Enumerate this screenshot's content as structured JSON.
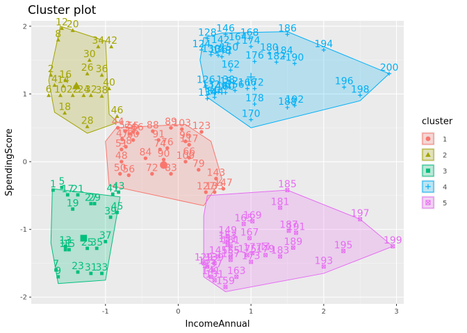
{
  "chart_data": {
    "type": "scatter",
    "title": "Cluster plot",
    "xlabel": "IncomeAnnual",
    "ylabel": "SpendingScore",
    "xlim": [
      -2.02,
      3.1
    ],
    "ylim": [
      -2.1,
      2.08
    ],
    "xticks": [
      -1,
      0,
      1,
      2,
      3
    ],
    "yticks": [
      -2,
      -1,
      0,
      1,
      2
    ],
    "grid": true,
    "legend": {
      "title": "cluster",
      "position": "right",
      "entries": [
        "1",
        "2",
        "3",
        "4",
        "5"
      ]
    },
    "series": [
      {
        "name": "1",
        "color": "#F8766D",
        "shape": "circle",
        "hull": [
          [
            -0.85,
            0.5
          ],
          [
            0.1,
            0.55
          ],
          [
            0.45,
            0.3
          ],
          [
            0.6,
            -0.25
          ],
          [
            0.35,
            -0.65
          ],
          [
            -0.95,
            -0.35
          ],
          [
            -1.0,
            0.3
          ]
        ],
        "centroid": [
          -0.2,
          -0.05
        ],
        "points": [
          {
            "id": "44",
            "x": -0.83,
            "y": 0.5
          },
          {
            "id": "52",
            "x": -0.73,
            "y": 0.45
          },
          {
            "id": "54",
            "x": -0.66,
            "y": 0.41
          },
          {
            "id": "55",
            "x": -0.62,
            "y": 0.44
          },
          {
            "id": "66",
            "x": -0.56,
            "y": 0.42
          },
          {
            "id": "47",
            "x": -0.77,
            "y": 0.33
          },
          {
            "id": "60",
            "x": -0.62,
            "y": 0.32
          },
          {
            "id": "58",
            "x": -0.72,
            "y": 0.22
          },
          {
            "id": "51",
            "x": -0.78,
            "y": 0.18
          },
          {
            "id": "88",
            "x": -0.35,
            "y": 0.45
          },
          {
            "id": "89",
            "x": -0.1,
            "y": 0.5
          },
          {
            "id": "103",
            "x": 0.05,
            "y": 0.48
          },
          {
            "id": "123",
            "x": 0.32,
            "y": 0.44
          },
          {
            "id": "91",
            "x": -0.27,
            "y": 0.32
          },
          {
            "id": "74",
            "x": -0.25,
            "y": 0.18
          },
          {
            "id": "76",
            "x": -0.15,
            "y": 0.2
          },
          {
            "id": "96",
            "x": 0.1,
            "y": 0.3
          },
          {
            "id": "117",
            "x": 0.15,
            "y": 0.25
          },
          {
            "id": "48",
            "x": -0.78,
            "y": 0.0
          },
          {
            "id": "84",
            "x": -0.45,
            "y": 0.05
          },
          {
            "id": "90",
            "x": -0.2,
            "y": 0.03
          },
          {
            "id": "109",
            "x": 0.1,
            "y": 0.0
          },
          {
            "id": "66b",
            "x": 0.15,
            "y": 0.06
          },
          {
            "id": "50",
            "x": -0.8,
            "y": -0.18
          },
          {
            "id": "56",
            "x": -0.68,
            "y": -0.2
          },
          {
            "id": "72",
            "x": -0.36,
            "y": -0.18
          },
          {
            "id": "83",
            "x": -0.1,
            "y": -0.18
          },
          {
            "id": "79",
            "x": 0.28,
            "y": -0.12
          },
          {
            "id": "143",
            "x": 0.52,
            "y": -0.25
          },
          {
            "id": "127",
            "x": 0.38,
            "y": -0.45
          },
          {
            "id": "133",
            "x": 0.5,
            "y": -0.45
          },
          {
            "id": "147",
            "x": 0.62,
            "y": -0.4
          }
        ]
      },
      {
        "name": "2",
        "color": "#A3A500",
        "shape": "triangle",
        "hull": [
          [
            -1.62,
            2.0
          ],
          [
            -1.0,
            1.78
          ],
          [
            -0.95,
            0.7
          ],
          [
            -0.83,
            0.58
          ],
          [
            -1.25,
            0.42
          ],
          [
            -1.7,
            0.73
          ],
          [
            -1.78,
            1.2
          ]
        ],
        "centroid": [
          -1.4,
          1.12
        ],
        "points": [
          {
            "id": "12",
            "x": -1.6,
            "y": 1.97
          },
          {
            "id": "20",
            "x": -1.45,
            "y": 1.94
          },
          {
            "id": "8",
            "x": -1.65,
            "y": 1.8
          },
          {
            "id": "34",
            "x": -1.1,
            "y": 1.7
          },
          {
            "id": "42",
            "x": -0.92,
            "y": 1.7
          },
          {
            "id": "30",
            "x": -1.22,
            "y": 1.5
          },
          {
            "id": "26",
            "x": -1.25,
            "y": 1.3
          },
          {
            "id": "36",
            "x": -1.05,
            "y": 1.28
          },
          {
            "id": "2",
            "x": -1.75,
            "y": 1.28
          },
          {
            "id": "16",
            "x": -1.55,
            "y": 1.2
          },
          {
            "id": "4",
            "x": -1.7,
            "y": 1.13
          },
          {
            "id": "14",
            "x": -1.58,
            "y": 1.12
          },
          {
            "id": "40",
            "x": -0.95,
            "y": 1.08
          },
          {
            "id": "10",
            "x": -1.62,
            "y": 0.98
          },
          {
            "id": "22",
            "x": -1.45,
            "y": 0.98
          },
          {
            "id": "24",
            "x": -1.3,
            "y": 0.98
          },
          {
            "id": "32",
            "x": -1.2,
            "y": 0.98
          },
          {
            "id": "38",
            "x": -1.05,
            "y": 0.97
          },
          {
            "id": "6",
            "x": -1.78,
            "y": 0.98
          },
          {
            "id": "18",
            "x": -1.56,
            "y": 0.72
          },
          {
            "id": "46",
            "x": -0.84,
            "y": 0.67
          },
          {
            "id": "28",
            "x": -1.25,
            "y": 0.52
          }
        ]
      },
      {
        "name": "3",
        "color": "#00BF7D",
        "shape": "square",
        "hull": [
          [
            -1.73,
            -0.4
          ],
          [
            -0.8,
            -0.52
          ],
          [
            -1.0,
            -1.75
          ],
          [
            -1.65,
            -1.8
          ],
          [
            -1.75,
            -1.2
          ]
        ],
        "centroid": [
          -1.3,
          -1.13
        ],
        "points": [
          {
            "id": "1",
            "x": -1.72,
            "y": -0.42
          },
          {
            "id": "5",
            "x": -1.6,
            "y": -0.38
          },
          {
            "id": "17",
            "x": -1.52,
            "y": -0.49
          },
          {
            "id": "21",
            "x": -1.38,
            "y": -0.49
          },
          {
            "id": "27",
            "x": -1.2,
            "y": -0.62
          },
          {
            "id": "29",
            "x": -1.15,
            "y": -0.62
          },
          {
            "id": "19",
            "x": -1.45,
            "y": -0.7
          },
          {
            "id": "41",
            "x": -0.9,
            "y": -0.48
          },
          {
            "id": "43",
            "x": -0.82,
            "y": -0.45
          },
          {
            "id": "45",
            "x": -0.84,
            "y": -0.75
          },
          {
            "id": "39",
            "x": -0.93,
            "y": -0.82
          },
          {
            "id": "13",
            "x": -1.55,
            "y": -1.25
          },
          {
            "id": "11",
            "x": -1.55,
            "y": -1.3
          },
          {
            "id": "15",
            "x": -1.5,
            "y": -1.3
          },
          {
            "id": "25",
            "x": -1.25,
            "y": -1.28
          },
          {
            "id": "35",
            "x": -1.12,
            "y": -1.28
          },
          {
            "id": "37",
            "x": -1.0,
            "y": -1.18
          },
          {
            "id": "7",
            "x": -1.68,
            "y": -1.6
          },
          {
            "id": "9",
            "x": -1.65,
            "y": -1.7
          },
          {
            "id": "23",
            "x": -1.38,
            "y": -1.63
          },
          {
            "id": "31",
            "x": -1.2,
            "y": -1.65
          },
          {
            "id": "33",
            "x": -1.05,
            "y": -1.65
          }
        ]
      },
      {
        "name": "4",
        "color": "#00B0F6",
        "shape": "cross",
        "hull": [
          [
            0.35,
            1.83
          ],
          [
            0.6,
            1.9
          ],
          [
            1.5,
            1.92
          ],
          [
            2.9,
            1.3
          ],
          [
            2.5,
            0.9
          ],
          [
            1.0,
            0.5
          ],
          [
            0.4,
            0.95
          ],
          [
            0.3,
            1.5
          ]
        ],
        "centroid": [
          1.0,
          1.25
        ],
        "points": [
          {
            "id": "128",
            "x": 0.4,
            "y": 1.82
          },
          {
            "id": "146",
            "x": 0.65,
            "y": 1.88
          },
          {
            "id": "168",
            "x": 0.98,
            "y": 1.82
          },
          {
            "id": "186",
            "x": 1.5,
            "y": 1.88
          },
          {
            "id": "124",
            "x": 0.32,
            "y": 1.65
          },
          {
            "id": "142",
            "x": 0.58,
            "y": 1.71
          },
          {
            "id": "164",
            "x": 0.82,
            "y": 1.75
          },
          {
            "id": "174",
            "x": 1.0,
            "y": 1.7
          },
          {
            "id": "194",
            "x": 2.0,
            "y": 1.65
          },
          {
            "id": "130",
            "x": 0.45,
            "y": 1.58
          },
          {
            "id": "136",
            "x": 0.55,
            "y": 1.57
          },
          {
            "id": "148",
            "x": 0.6,
            "y": 1.55
          },
          {
            "id": "150",
            "x": 0.7,
            "y": 1.6
          },
          {
            "id": "180",
            "x": 1.25,
            "y": 1.6
          },
          {
            "id": "184",
            "x": 1.45,
            "y": 1.55
          },
          {
            "id": "176",
            "x": 1.05,
            "y": 1.48
          },
          {
            "id": "182",
            "x": 1.35,
            "y": 1.47
          },
          {
            "id": "190",
            "x": 1.6,
            "y": 1.45
          },
          {
            "id": "162",
            "x": 0.72,
            "y": 1.35
          },
          {
            "id": "200",
            "x": 2.9,
            "y": 1.3
          },
          {
            "id": "196",
            "x": 2.28,
            "y": 1.1
          },
          {
            "id": "126",
            "x": 0.38,
            "y": 1.12
          },
          {
            "id": "138",
            "x": 0.65,
            "y": 1.12
          },
          {
            "id": "132",
            "x": 0.45,
            "y": 1.05
          },
          {
            "id": "140",
            "x": 0.55,
            "y": 1.03
          },
          {
            "id": "152",
            "x": 0.7,
            "y": 1.1
          },
          {
            "id": "156",
            "x": 0.78,
            "y": 1.05
          },
          {
            "id": "160",
            "x": 0.65,
            "y": 1.02
          },
          {
            "id": "166",
            "x": 0.95,
            "y": 1.08
          },
          {
            "id": "172",
            "x": 1.05,
            "y": 1.08
          },
          {
            "id": "198",
            "x": 2.5,
            "y": 0.98
          },
          {
            "id": "134",
            "x": 0.4,
            "y": 0.93
          },
          {
            "id": "144",
            "x": 0.5,
            "y": 0.95
          },
          {
            "id": "178",
            "x": 1.05,
            "y": 0.85
          },
          {
            "id": "188",
            "x": 1.5,
            "y": 0.8
          },
          {
            "id": "192",
            "x": 1.6,
            "y": 0.83
          },
          {
            "id": "170",
            "x": 1.0,
            "y": 0.62
          }
        ]
      },
      {
        "name": "5",
        "color": "#E76BF3",
        "shape": "square-cross",
        "hull": [
          [
            0.4,
            -0.5
          ],
          [
            1.5,
            -0.42
          ],
          [
            2.5,
            -0.85
          ],
          [
            2.95,
            -1.25
          ],
          [
            2.0,
            -1.65
          ],
          [
            0.65,
            -1.92
          ],
          [
            0.35,
            -1.7
          ],
          [
            0.35,
            -0.8
          ]
        ],
        "centroid": [
          1.2,
          -1.25
        ],
        "points": [
          {
            "id": "185",
            "x": 1.5,
            "y": -0.42
          },
          {
            "id": "181",
            "x": 1.4,
            "y": -0.68
          },
          {
            "id": "197",
            "x": 2.5,
            "y": -0.85
          },
          {
            "id": "165",
            "x": 0.9,
            "y": -0.92
          },
          {
            "id": "169",
            "x": 1.02,
            "y": -0.88
          },
          {
            "id": "187",
            "x": 1.52,
            "y": -1.02
          },
          {
            "id": "191",
            "x": 1.62,
            "y": -1.05
          },
          {
            "id": "149",
            "x": 0.68,
            "y": -1.1
          },
          {
            "id": "167",
            "x": 0.98,
            "y": -1.13
          },
          {
            "id": "199",
            "x": 2.95,
            "y": -1.25
          },
          {
            "id": "153",
            "x": 0.68,
            "y": -1.18
          },
          {
            "id": "151",
            "x": 0.68,
            "y": -1.23
          },
          {
            "id": "161",
            "x": 0.72,
            "y": -1.25
          },
          {
            "id": "189",
            "x": 1.58,
            "y": -1.27
          },
          {
            "id": "195",
            "x": 2.27,
            "y": -1.32
          },
          {
            "id": "177",
            "x": 1.02,
            "y": -1.35
          },
          {
            "id": "175",
            "x": 0.95,
            "y": -1.38
          },
          {
            "id": "179",
            "x": 1.2,
            "y": -1.38
          },
          {
            "id": "183",
            "x": 1.4,
            "y": -1.4
          },
          {
            "id": "145",
            "x": 0.55,
            "y": -1.4
          },
          {
            "id": "155",
            "x": 0.72,
            "y": -1.4
          },
          {
            "id": "157",
            "x": 0.72,
            "y": -1.45
          },
          {
            "id": "173",
            "x": 1.0,
            "y": -1.48
          },
          {
            "id": "193",
            "x": 2.0,
            "y": -1.55
          },
          {
            "id": "129",
            "x": 0.35,
            "y": -1.5
          },
          {
            "id": "139",
            "x": 0.5,
            "y": -1.5
          },
          {
            "id": "135",
            "x": 0.4,
            "y": -1.55
          },
          {
            "id": "137",
            "x": 0.48,
            "y": -1.6
          },
          {
            "id": "141",
            "x": 0.45,
            "y": -1.7
          },
          {
            "id": "163",
            "x": 0.8,
            "y": -1.7
          },
          {
            "id": "131",
            "x": 0.5,
            "y": -1.75
          },
          {
            "id": "159",
            "x": 0.65,
            "y": -1.85
          }
        ]
      }
    ]
  }
}
